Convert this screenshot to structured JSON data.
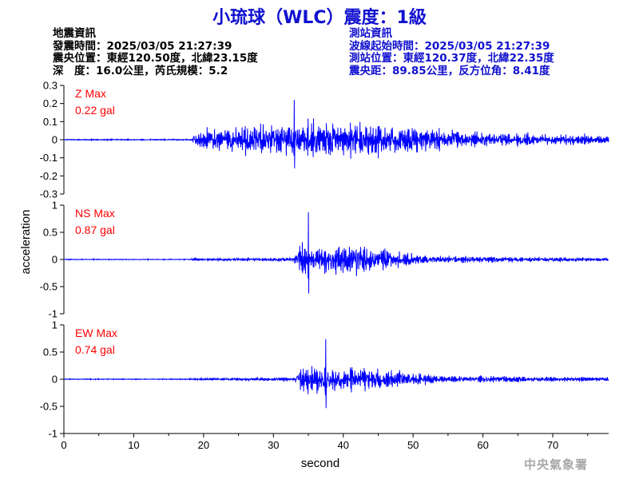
{
  "header": {
    "title": "小琉球（WLC）震度：1級"
  },
  "quake_info": {
    "heading": "地震資訊",
    "origin_time": "發震時間：2025/03/05 21:27:39",
    "epicenter": "震央位置：東經120.50度，北緯23.15度",
    "depth_magnitude": "深　度：16.0公里，芮氏規模：5.2"
  },
  "station_info": {
    "heading": "測站資訊",
    "wave_start": "波線起始時間：2025/03/05 21:27:39",
    "station_location": "測站位置：東經120.37度，北緯22.35度",
    "distance_azimuth": "震央距：89.85公里，反方位角：8.41度"
  },
  "watermark": "中央氣象署",
  "chart_data": {
    "type": "line",
    "xlabel": "second",
    "ylabel": "acceleration",
    "xlim": [
      0,
      78
    ],
    "xticks": [
      0,
      10,
      20,
      30,
      40,
      50,
      60,
      70
    ],
    "line_color": "#0000ff",
    "panels": [
      {
        "name": "Z",
        "max_label": "Z Max",
        "max_value_label": "0.22 gal",
        "peak": 0.22,
        "ylim": [
          -0.3,
          0.3
        ],
        "yticks": [
          "0.3",
          "0.2",
          "0.1",
          "0",
          "-0.1",
          "-0.2",
          "-0.3"
        ],
        "ytick_values": [
          0.3,
          0.2,
          0.1,
          0,
          -0.1,
          -0.2,
          -0.3
        ]
      },
      {
        "name": "NS",
        "max_label": "NS Max",
        "max_value_label": "0.87 gal",
        "peak": 0.87,
        "ylim": [
          -1,
          1
        ],
        "yticks": [
          "1",
          "0.5",
          "0",
          "-0.5",
          "-1"
        ],
        "ytick_values": [
          1,
          0.5,
          0,
          -0.5,
          -1
        ]
      },
      {
        "name": "EW",
        "max_label": "EW Max",
        "max_value_label": "0.74 gal",
        "peak": 0.74,
        "ylim": [
          -1,
          1
        ],
        "yticks": [
          "1",
          "0.5",
          "0",
          "-0.5",
          "-1"
        ],
        "ytick_values": [
          1,
          0.5,
          0,
          -0.5,
          -1
        ]
      }
    ]
  }
}
